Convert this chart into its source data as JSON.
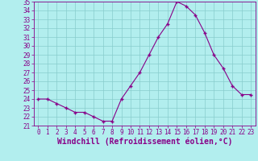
{
  "x": [
    0,
    1,
    2,
    3,
    4,
    5,
    6,
    7,
    8,
    9,
    10,
    11,
    12,
    13,
    14,
    15,
    16,
    17,
    18,
    19,
    20,
    21,
    22,
    23
  ],
  "y": [
    24.0,
    24.0,
    23.5,
    23.0,
    22.5,
    22.5,
    22.0,
    21.5,
    21.5,
    24.0,
    25.5,
    27.0,
    29.0,
    31.0,
    32.5,
    35.0,
    34.5,
    33.5,
    31.5,
    29.0,
    27.5,
    25.5,
    24.5,
    24.5
  ],
  "line_color": "#880088",
  "marker": "+",
  "bg_color": "#b2eeee",
  "grid_color": "#88cccc",
  "axis_color": "#880088",
  "xlabel": "Windchill (Refroidissement éolien,°C)",
  "ylim": [
    21,
    35
  ],
  "xlim": [
    -0.5,
    23.5
  ],
  "yticks": [
    21,
    22,
    23,
    24,
    25,
    26,
    27,
    28,
    29,
    30,
    31,
    32,
    33,
    34,
    35
  ],
  "xticks": [
    0,
    1,
    2,
    3,
    4,
    5,
    6,
    7,
    8,
    9,
    10,
    11,
    12,
    13,
    14,
    15,
    16,
    17,
    18,
    19,
    20,
    21,
    22,
    23
  ],
  "tick_fontsize": 5.5,
  "label_fontsize": 7.0
}
